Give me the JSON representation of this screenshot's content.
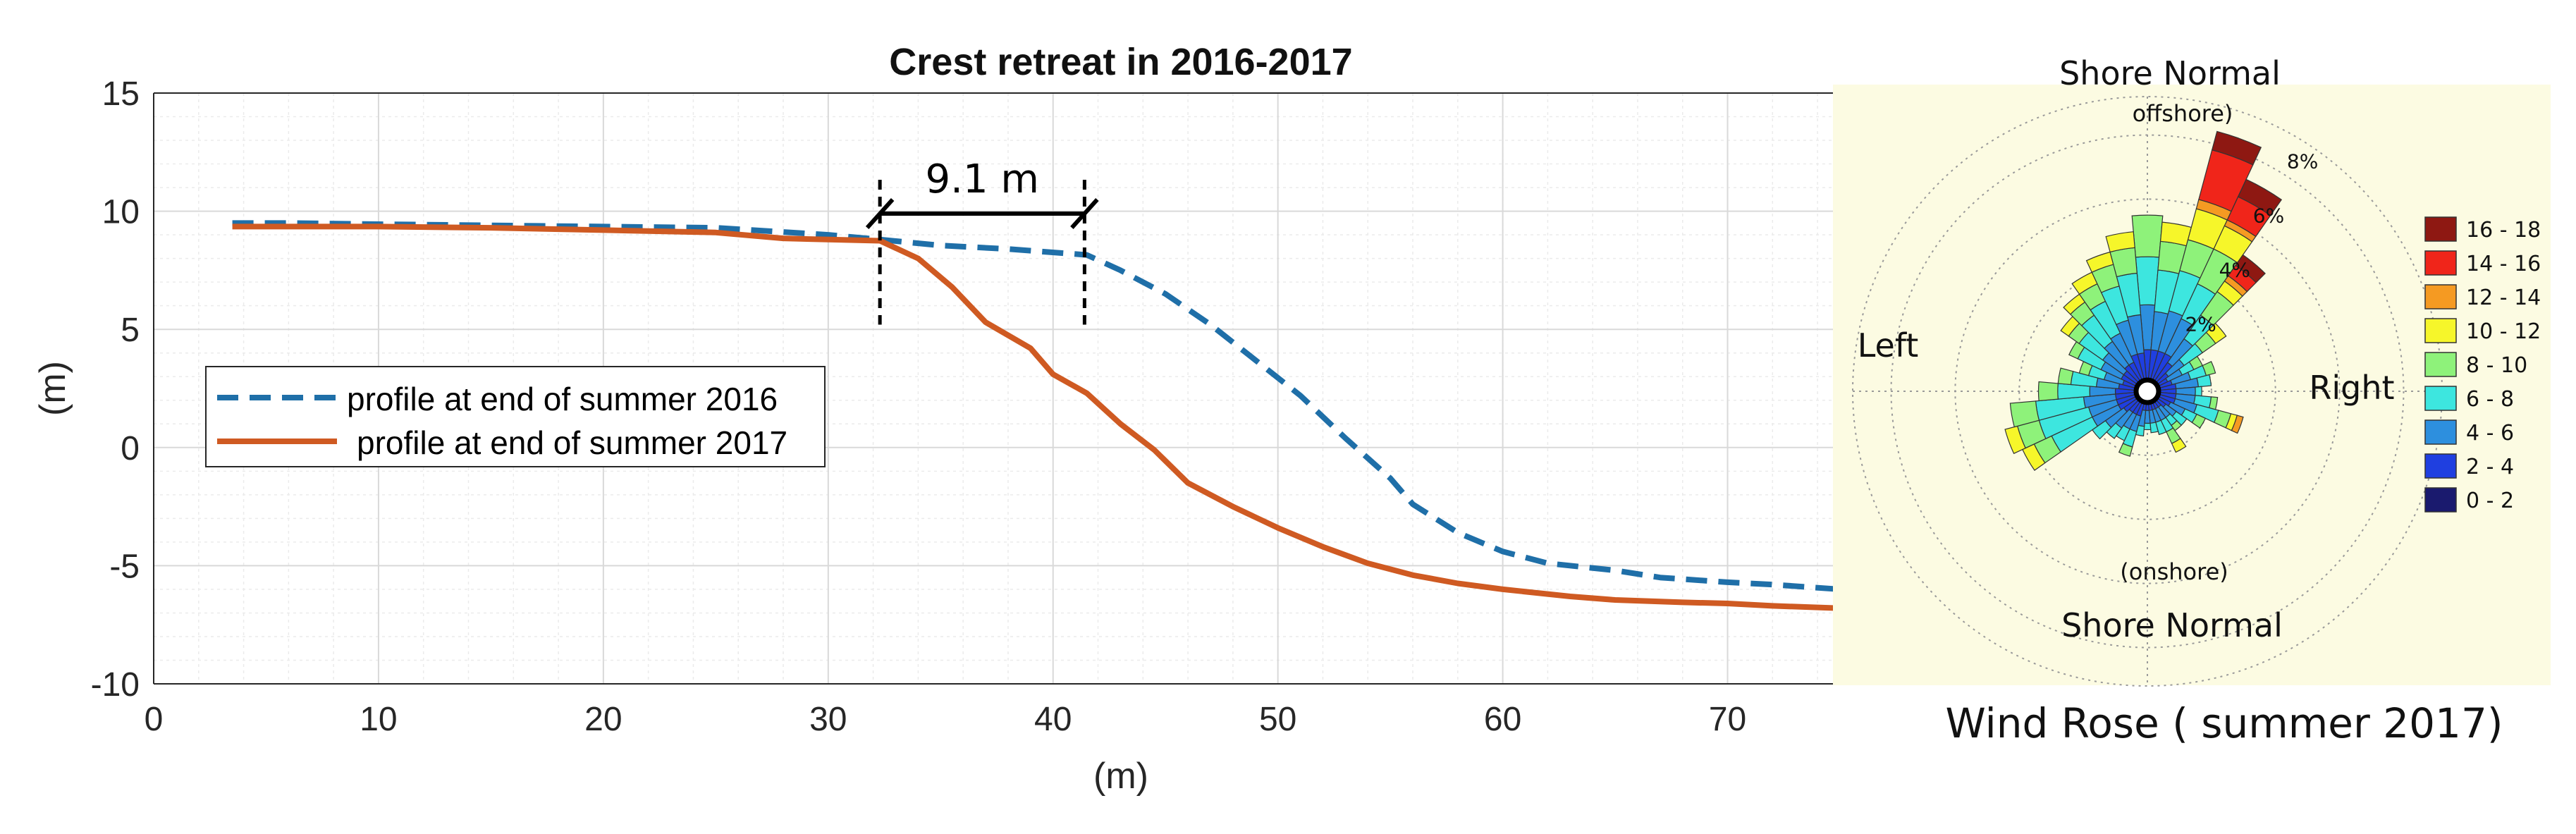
{
  "colors": {
    "profile_2016": "#1f6fa8",
    "profile_2017": "#cf5a22",
    "grid": "#d9d9d9",
    "rose_bg": "#fcfbe2",
    "rose_ring": "#9a9a9a",
    "bins": [
      "#1a1a6e",
      "#1f3fe0",
      "#2d8fde",
      "#3de6df",
      "#8ef27a",
      "#f6f62a",
      "#f59a22",
      "#f0251a",
      "#8e1812"
    ]
  },
  "chart_data": [
    {
      "type": "line",
      "title": "Crest retreat in 2016-2017",
      "xlabel": "(m)",
      "ylabel": "(m)",
      "xlim": [
        0,
        75
      ],
      "ylim": [
        -10,
        15
      ],
      "grid": true,
      "x_ticks": [
        0,
        10,
        20,
        30,
        40,
        50,
        60,
        70
      ],
      "y_ticks": [
        15,
        10,
        5,
        0,
        -5,
        -10
      ],
      "legend_position": "middle-left",
      "series": [
        {
          "name": "profile at end of summer 2016",
          "style": "dashed",
          "x": [
            3.5,
            6,
            10,
            15,
            20,
            25,
            30,
            32.3,
            35,
            38,
            41.5,
            43,
            45,
            47,
            49,
            51,
            53,
            55,
            56,
            58,
            60,
            62,
            65,
            67,
            70,
            72,
            75
          ],
          "y": [
            9.5,
            9.5,
            9.45,
            9.4,
            9.35,
            9.3,
            9.0,
            8.8,
            8.55,
            8.4,
            8.15,
            7.5,
            6.5,
            5.2,
            3.7,
            2.2,
            0.4,
            -1.3,
            -2.4,
            -3.6,
            -4.4,
            -4.9,
            -5.2,
            -5.5,
            -5.7,
            -5.8,
            -6.0
          ]
        },
        {
          "name": "profile at end of summer 2017",
          "style": "solid",
          "x": [
            3.5,
            6,
            10,
            15,
            20,
            25,
            28,
            30,
            32.3,
            34,
            35.5,
            37,
            39,
            40,
            41.5,
            43,
            44.5,
            46,
            48,
            50,
            52,
            54,
            56,
            58,
            60,
            63,
            65,
            68,
            70,
            72,
            75
          ],
          "y": [
            9.35,
            9.35,
            9.35,
            9.3,
            9.2,
            9.1,
            8.85,
            8.8,
            8.75,
            8.0,
            6.8,
            5.3,
            4.2,
            3.1,
            2.3,
            1.0,
            -0.1,
            -1.5,
            -2.5,
            -3.4,
            -4.2,
            -4.9,
            -5.4,
            -5.75,
            -6.0,
            -6.3,
            -6.45,
            -6.55,
            -6.6,
            -6.7,
            -6.8
          ]
        }
      ],
      "annotations": [
        {
          "text": "9.1 m",
          "from_x": 32.3,
          "to_x": 41.4,
          "y": 9.9
        }
      ]
    },
    {
      "type": "polar-bar",
      "title": "Wind Rose ( summer 2017)",
      "direction_labels": {
        "top": "Shore Normal",
        "top_sub": "offshore)",
        "bottom": "Shore Normal",
        "bottom_sub": "(onshore)",
        "left": "Left",
        "right": "Right"
      },
      "ring_labels": [
        "2%",
        "4%",
        "6%",
        "8%"
      ],
      "rmax_percent": 9.2,
      "legend_title": "",
      "bins": [
        "0 - 2",
        "2 - 4",
        "4 - 6",
        "6 - 8",
        "8 - 10",
        "10 - 12",
        "12 - 14",
        "14 - 16",
        "16 - 18"
      ],
      "direction_step_deg": 10,
      "sectors": [
        {
          "dir": 0,
          "values": [
            0.4,
            0.9,
            1.4,
            1.5,
            1.3,
            0.0,
            0.0,
            0.0,
            0.0
          ]
        },
        {
          "dir": 10,
          "values": [
            0.4,
            0.9,
            1.2,
            1.3,
            0.9,
            0.6,
            0.0,
            0.0,
            0.0
          ]
        },
        {
          "dir": 20,
          "values": [
            0.4,
            0.9,
            1.3,
            1.3,
            1.0,
            1.0,
            0.3,
            1.6,
            0.6
          ]
        },
        {
          "dir": 30,
          "values": [
            0.4,
            0.9,
            1.2,
            1.2,
            1.2,
            0.8,
            0.2,
            0.8,
            0.6
          ]
        },
        {
          "dir": 40,
          "values": [
            0.4,
            0.7,
            0.9,
            0.9,
            0.9,
            0.4,
            0.2,
            0.4,
            0.4
          ]
        },
        {
          "dir": 50,
          "values": [
            0.3,
            0.5,
            0.6,
            0.7,
            0.5,
            0.4,
            0.0,
            0.0,
            0.0
          ]
        },
        {
          "dir": 60,
          "values": [
            0.3,
            0.4,
            0.5,
            0.4,
            0.3,
            0.0,
            0.0,
            0.0,
            0.0
          ]
        },
        {
          "dir": 70,
          "values": [
            0.3,
            0.5,
            0.6,
            0.5,
            0.3,
            0.0,
            0.0,
            0.0,
            0.0
          ]
        },
        {
          "dir": 80,
          "values": [
            0.3,
            0.6,
            0.7,
            0.4,
            0.0,
            0.0,
            0.0,
            0.0,
            0.0
          ]
        },
        {
          "dir": 90,
          "values": [
            0.3,
            0.6,
            0.6,
            0.2,
            0.0,
            0.0,
            0.0,
            0.0,
            0.0
          ]
        },
        {
          "dir": 100,
          "values": [
            0.3,
            0.6,
            0.6,
            0.5,
            0.2,
            0.0,
            0.0,
            0.0,
            0.0
          ]
        },
        {
          "dir": 110,
          "values": [
            0.3,
            0.6,
            0.7,
            0.7,
            0.4,
            0.2,
            0.2,
            0.0,
            0.0
          ]
        },
        {
          "dir": 120,
          "values": [
            0.3,
            0.5,
            0.5,
            0.4,
            0.3,
            0.0,
            0.0,
            0.0,
            0.0
          ]
        },
        {
          "dir": 130,
          "values": [
            0.3,
            0.4,
            0.4,
            0.4,
            0.0,
            0.0,
            0.0,
            0.0,
            0.0
          ]
        },
        {
          "dir": 140,
          "values": [
            0.2,
            0.4,
            0.4,
            0.3,
            0.2,
            0.0,
            0.0,
            0.0,
            0.0
          ]
        },
        {
          "dir": 150,
          "values": [
            0.2,
            0.4,
            0.4,
            0.4,
            0.4,
            0.3,
            0.0,
            0.0,
            0.0
          ]
        },
        {
          "dir": 160,
          "values": [
            0.2,
            0.4,
            0.4,
            0.4,
            0.0,
            0.0,
            0.0,
            0.0,
            0.0
          ]
        },
        {
          "dir": 170,
          "values": [
            0.2,
            0.4,
            0.4,
            0.3,
            0.0,
            0.0,
            0.0,
            0.0,
            0.0
          ]
        },
        {
          "dir": 180,
          "values": [
            0.2,
            0.4,
            0.4,
            0.2,
            0.0,
            0.0,
            0.0,
            0.0,
            0.0
          ]
        },
        {
          "dir": 190,
          "values": [
            0.2,
            0.4,
            0.5,
            0.3,
            0.0,
            0.0,
            0.0,
            0.0,
            0.0
          ]
        },
        {
          "dir": 200,
          "values": [
            0.3,
            0.5,
            0.5,
            0.5,
            0.3,
            0.0,
            0.0,
            0.0,
            0.0
          ]
        },
        {
          "dir": 210,
          "values": [
            0.3,
            0.5,
            0.5,
            0.4,
            0.0,
            0.0,
            0.0,
            0.0,
            0.0
          ]
        },
        {
          "dir": 220,
          "values": [
            0.3,
            0.5,
            0.6,
            0.4,
            0.0,
            0.0,
            0.0,
            0.0,
            0.0
          ]
        },
        {
          "dir": 230,
          "values": [
            0.3,
            0.6,
            0.7,
            0.5,
            0.0,
            0.0,
            0.0,
            0.0,
            0.0
          ]
        },
        {
          "dir": 240,
          "values": [
            0.3,
            0.7,
            0.9,
            1.4,
            0.6,
            0.4,
            0.0,
            0.0,
            0.0
          ]
        },
        {
          "dir": 250,
          "values": [
            0.3,
            0.7,
            0.9,
            1.6,
            0.7,
            0.4,
            0.0,
            0.0,
            0.0
          ]
        },
        {
          "dir": 260,
          "values": [
            0.3,
            0.7,
            1.0,
            1.5,
            0.8,
            0.0,
            0.0,
            0.0,
            0.0
          ]
        },
        {
          "dir": 270,
          "values": [
            0.3,
            0.7,
            0.8,
            1.0,
            0.6,
            0.0,
            0.0,
            0.0,
            0.0
          ]
        },
        {
          "dir": 280,
          "values": [
            0.3,
            0.6,
            0.7,
            0.8,
            0.4,
            0.0,
            0.0,
            0.0,
            0.0
          ]
        },
        {
          "dir": 290,
          "values": [
            0.3,
            0.5,
            0.6,
            0.5,
            0.3,
            0.0,
            0.0,
            0.0,
            0.0
          ]
        },
        {
          "dir": 300,
          "values": [
            0.3,
            0.6,
            0.7,
            0.8,
            0.3,
            0.0,
            0.0,
            0.0,
            0.0
          ]
        },
        {
          "dir": 310,
          "values": [
            0.3,
            0.6,
            0.8,
            0.9,
            0.4,
            0.3,
            0.0,
            0.0,
            0.0
          ]
        },
        {
          "dir": 320,
          "values": [
            0.3,
            0.7,
            0.9,
            1.0,
            0.5,
            0.3,
            0.0,
            0.0,
            0.0
          ]
        },
        {
          "dir": 330,
          "values": [
            0.3,
            0.7,
            1.0,
            1.1,
            0.6,
            0.4,
            0.0,
            0.0,
            0.0
          ]
        },
        {
          "dir": 340,
          "values": [
            0.4,
            0.8,
            1.1,
            1.1,
            0.7,
            0.4,
            0.0,
            0.0,
            0.0
          ]
        },
        {
          "dir": 350,
          "values": [
            0.4,
            0.8,
            1.2,
            1.3,
            0.8,
            0.5,
            0.0,
            0.0,
            0.0
          ]
        }
      ]
    }
  ]
}
